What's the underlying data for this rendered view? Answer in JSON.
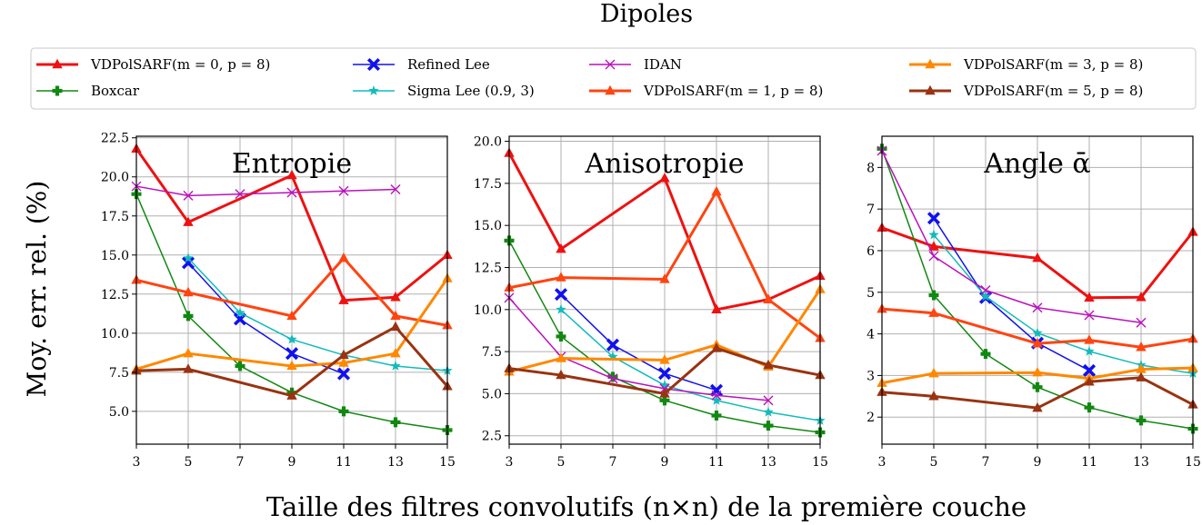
{
  "figure": {
    "title": "Dipoles",
    "xlabel": "Taille des filtres convolutifs (n×n) de la première couche",
    "ylabel": "Moy. err. rel. (%)"
  },
  "legend": {
    "placement": "top",
    "columns": 4,
    "entries": [
      {
        "name": "VDPolSARF(m = 0, p = 8)",
        "color": "#ee1111",
        "marker": "triangle",
        "width": 3
      },
      {
        "name": "Boxcar",
        "color": "#118811",
        "marker": "plus",
        "width": 1.5
      },
      {
        "name": "Refined Lee",
        "color": "#1111ee",
        "marker": "x-filled",
        "width": 1.5
      },
      {
        "name": "Sigma Lee (0.9, 3)",
        "color": "#11bbbb",
        "marker": "star",
        "width": 1.5
      },
      {
        "name": "IDAN",
        "color": "#bb11bb",
        "marker": "x",
        "width": 1.5
      },
      {
        "name": "VDPolSARF(m = 1, p = 8)",
        "color": "#ff4411",
        "marker": "triangle",
        "width": 3
      },
      {
        "name": "VDPolSARF(m = 3, p = 8)",
        "color": "#ff8800",
        "marker": "triangle",
        "width": 3
      },
      {
        "name": "VDPolSARF(m = 5, p = 8)",
        "color": "#993311",
        "marker": "triangle",
        "width": 3
      }
    ]
  },
  "chart_data": [
    {
      "type": "line",
      "title": "Entropie",
      "x": [
        3,
        5,
        7,
        9,
        11,
        13,
        15
      ],
      "xlim": [
        3,
        15
      ],
      "ylim": [
        2.9,
        22.6
      ],
      "yticks": [
        5.0,
        7.5,
        10.0,
        12.5,
        15.0,
        17.5,
        20.0,
        22.5
      ],
      "ytick_labels": [
        "5.0",
        "7.5",
        "10.0",
        "12.5",
        "15.0",
        "17.5",
        "20.0",
        "22.5"
      ],
      "grid": true,
      "series": [
        {
          "name": "VDPolSARF(m = 0, p = 8)",
          "values": [
            21.8,
            17.1,
            null,
            20.1,
            12.1,
            12.3,
            15.0
          ]
        },
        {
          "name": "Boxcar",
          "values": [
            18.9,
            11.1,
            7.9,
            6.2,
            5.0,
            4.3,
            3.8
          ]
        },
        {
          "name": "Refined Lee",
          "values": [
            null,
            14.5,
            10.9,
            8.7,
            7.4,
            null,
            null
          ]
        },
        {
          "name": "Sigma Lee (0.9, 3)",
          "values": [
            null,
            14.8,
            11.3,
            9.6,
            8.6,
            7.9,
            7.6
          ]
        },
        {
          "name": "IDAN",
          "values": [
            19.4,
            18.8,
            18.9,
            19.0,
            19.1,
            19.2,
            null
          ]
        },
        {
          "name": "VDPolSARF(m = 1, p = 8)",
          "values": [
            13.4,
            12.6,
            null,
            11.1,
            14.8,
            11.1,
            10.5
          ]
        },
        {
          "name": "VDPolSARF(m = 3, p = 8)",
          "values": [
            7.7,
            8.7,
            null,
            7.9,
            8.1,
            8.7,
            13.5
          ]
        },
        {
          "name": "VDPolSARF(m = 5, p = 8)",
          "values": [
            7.6,
            7.7,
            null,
            6.0,
            8.6,
            10.4,
            6.6
          ]
        }
      ]
    },
    {
      "type": "line",
      "title": "Anisotropie",
      "x": [
        3,
        5,
        7,
        9,
        11,
        13,
        15
      ],
      "xlim": [
        3,
        15
      ],
      "ylim": [
        2.0,
        20.3
      ],
      "yticks": [
        2.5,
        5.0,
        7.5,
        10.0,
        12.5,
        15.0,
        17.5,
        20.0
      ],
      "ytick_labels": [
        "2.5",
        "5.0",
        "7.5",
        "10.0",
        "12.5",
        "15.0",
        "17.5",
        "20.0"
      ],
      "grid": true,
      "series": [
        {
          "name": "VDPolSARF(m = 0, p = 8)",
          "values": [
            19.3,
            13.6,
            null,
            17.8,
            10.0,
            10.6,
            12.0
          ]
        },
        {
          "name": "Boxcar",
          "values": [
            14.1,
            8.4,
            6.0,
            4.6,
            3.7,
            3.1,
            2.7
          ]
        },
        {
          "name": "Refined Lee",
          "values": [
            null,
            10.9,
            7.9,
            6.2,
            5.2,
            null,
            null
          ]
        },
        {
          "name": "Sigma Lee (0.9, 3)",
          "values": [
            null,
            10.0,
            7.2,
            5.5,
            4.6,
            3.9,
            3.4
          ]
        },
        {
          "name": "IDAN",
          "values": [
            10.7,
            7.2,
            5.9,
            5.3,
            4.9,
            4.6,
            null
          ]
        },
        {
          "name": "VDPolSARF(m = 1, p = 8)",
          "values": [
            11.3,
            11.9,
            null,
            11.8,
            17.0,
            10.6,
            8.3
          ]
        },
        {
          "name": "VDPolSARF(m = 3, p = 8)",
          "values": [
            6.3,
            7.1,
            null,
            7.0,
            7.9,
            6.6,
            11.2
          ]
        },
        {
          "name": "VDPolSARF(m = 5, p = 8)",
          "values": [
            6.5,
            6.1,
            null,
            5.0,
            7.7,
            6.7,
            6.1
          ]
        }
      ]
    },
    {
      "type": "line",
      "title": "Angle ᾱ",
      "x": [
        3,
        5,
        7,
        9,
        11,
        13,
        15
      ],
      "xlim": [
        3,
        15
      ],
      "ylim": [
        1.35,
        8.75
      ],
      "yticks": [
        2,
        3,
        4,
        5,
        6,
        7,
        8
      ],
      "ytick_labels": [
        "2",
        "3",
        "4",
        "5",
        "6",
        "7",
        "8"
      ],
      "grid": true,
      "series": [
        {
          "name": "VDPolSARF(m = 0, p = 8)",
          "values": [
            6.55,
            6.1,
            null,
            5.82,
            4.87,
            4.88,
            6.45
          ]
        },
        {
          "name": "Boxcar",
          "values": [
            8.45,
            4.93,
            3.52,
            2.72,
            2.23,
            1.92,
            1.72
          ]
        },
        {
          "name": "Refined Lee",
          "values": [
            null,
            6.78,
            4.87,
            3.78,
            3.12,
            null,
            null
          ]
        },
        {
          "name": "Sigma Lee (0.9, 3)",
          "values": [
            null,
            6.38,
            4.9,
            4.02,
            3.58,
            3.25,
            3.05
          ]
        },
        {
          "name": "IDAN",
          "values": [
            8.4,
            5.87,
            5.05,
            4.63,
            4.45,
            4.27,
            null
          ]
        },
        {
          "name": "VDPolSARF(m = 1, p = 8)",
          "values": [
            4.6,
            4.5,
            null,
            3.77,
            3.85,
            3.68,
            3.88
          ]
        },
        {
          "name": "VDPolSARF(m = 3, p = 8)",
          "values": [
            2.82,
            3.05,
            null,
            3.07,
            2.93,
            3.15,
            3.18
          ]
        },
        {
          "name": "VDPolSARF(m = 5, p = 8)",
          "values": [
            2.6,
            2.5,
            null,
            2.22,
            2.85,
            2.95,
            2.3
          ]
        }
      ]
    }
  ]
}
